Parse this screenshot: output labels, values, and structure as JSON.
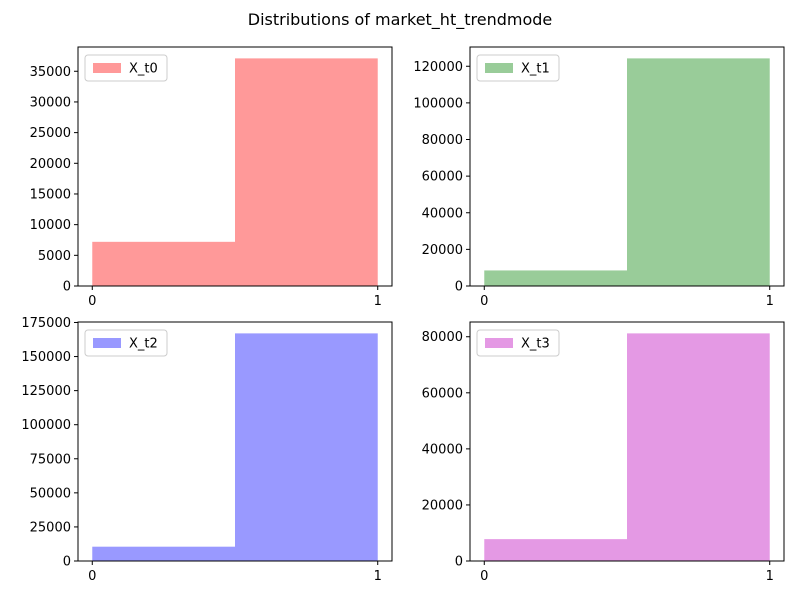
{
  "figure": {
    "suptitle": "Distributions of market_ht_trendmode"
  },
  "chart_data": [
    {
      "type": "bar",
      "subtype": "histogram",
      "categories": [
        "0",
        "1"
      ],
      "series": [
        {
          "name": "X_t0",
          "values": [
            7200,
            37100
          ]
        }
      ],
      "bin_edges": [
        0,
        0.5,
        1
      ],
      "xticks": [
        0,
        1
      ],
      "xlim": [
        -0.05,
        1.05
      ],
      "ylim": [
        0,
        38955
      ],
      "yticks": [
        0,
        5000,
        10000,
        15000,
        20000,
        25000,
        30000,
        35000
      ],
      "color": "#ff9999",
      "legend": "top-left",
      "grid": false
    },
    {
      "type": "bar",
      "subtype": "histogram",
      "categories": [
        "0",
        "1"
      ],
      "series": [
        {
          "name": "X_t1",
          "values": [
            8500,
            124300
          ]
        }
      ],
      "bin_edges": [
        0,
        0.5,
        1
      ],
      "xticks": [
        0,
        1
      ],
      "xlim": [
        -0.05,
        1.05
      ],
      "ylim": [
        0,
        130515
      ],
      "yticks": [
        0,
        20000,
        40000,
        60000,
        80000,
        100000,
        120000
      ],
      "color": "#99cc99",
      "legend": "top-left",
      "grid": false
    },
    {
      "type": "bar",
      "subtype": "histogram",
      "categories": [
        "0",
        "1"
      ],
      "series": [
        {
          "name": "X_t2",
          "values": [
            10500,
            167000
          ]
        }
      ],
      "bin_edges": [
        0,
        0.5,
        1
      ],
      "xticks": [
        0,
        1
      ],
      "xlim": [
        -0.05,
        1.05
      ],
      "ylim": [
        0,
        175350
      ],
      "yticks": [
        0,
        25000,
        50000,
        75000,
        100000,
        125000,
        150000,
        175000
      ],
      "color": "#9999ff",
      "legend": "top-left",
      "grid": false
    },
    {
      "type": "bar",
      "subtype": "histogram",
      "categories": [
        "0",
        "1"
      ],
      "series": [
        {
          "name": "X_t3",
          "values": [
            7800,
            81200
          ]
        }
      ],
      "bin_edges": [
        0,
        0.5,
        1
      ],
      "xticks": [
        0,
        1
      ],
      "xlim": [
        -0.05,
        1.05
      ],
      "ylim": [
        0,
        85260
      ],
      "yticks": [
        0,
        20000,
        40000,
        60000,
        80000
      ],
      "color": "#e499e4",
      "legend": "top-left",
      "grid": false
    }
  ]
}
